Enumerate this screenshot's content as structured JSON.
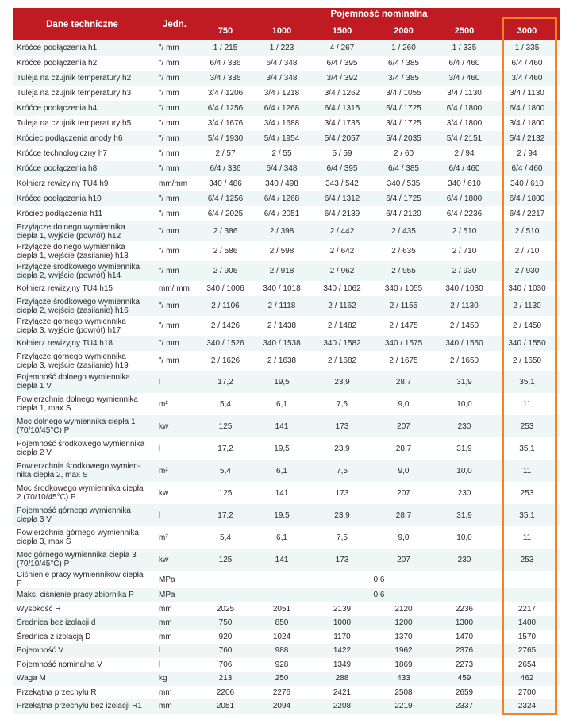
{
  "header": {
    "col_label": "Dane techniczne",
    "col_unit": "Jedn.",
    "group": "Pojemność nominalna",
    "capacities": [
      "750",
      "1000",
      "1500",
      "2000",
      "2500",
      "3000"
    ]
  },
  "highlight_color": "#f58220",
  "header_color": "#c01a22",
  "highlighted_column": "3000",
  "rows": [
    {
      "label": "Króćce podłączenia h1",
      "unit": "\"/ mm",
      "values": [
        "1 / 215",
        "1 / 223",
        "4 / 267",
        "1 / 260",
        "1 / 335",
        "1 / 335"
      ],
      "size": "s1"
    },
    {
      "label": "Króćce podłączenia h2",
      "unit": "\"/ mm",
      "values": [
        "6/4 / 336",
        "6/4 / 348",
        "6/4 / 395",
        "6/4 / 385",
        "6/4 / 460",
        "6/4 / 460"
      ],
      "size": "s1"
    },
    {
      "label": "Tuleja na czujnik temperatury h2",
      "unit": "\"/ mm",
      "values": [
        "3/4 / 336",
        "3/4 / 348",
        "3/4 / 392",
        "3/4 / 385",
        "3/4 / 460",
        "3/4 / 460"
      ],
      "size": "s1"
    },
    {
      "label": "Tuleja na czujnik temperatury h3",
      "unit": "\"/ mm",
      "values": [
        "3/4 / 1206",
        "3/4 / 1218",
        "3/4 / 1262",
        "3/4 / 1055",
        "3/4 / 1130",
        "3/4 / 1130"
      ],
      "size": "s1"
    },
    {
      "label": "Króćce podłączenia h4",
      "unit": "\"/ mm",
      "values": [
        "6/4 / 1256",
        "6/4 / 1268",
        "6/4 / 1315",
        "6/4 / 1725",
        "6/4 / 1800",
        "6/4 / 1800"
      ],
      "size": "s1"
    },
    {
      "label": "Tuleja na czujnik temperatury h5",
      "unit": "\"/ mm",
      "values": [
        "3/4 / 1676",
        "3/4 / 1688",
        "3/4 / 1735",
        "3/4 / 1725",
        "3/4 / 1800",
        "3/4 / 1800"
      ],
      "size": "s1"
    },
    {
      "label": "Króciec podłączenia anody h6",
      "unit": "\"/ mm",
      "values": [
        "5/4 / 1930",
        "5/4 / 1954",
        "5/4 / 2057",
        "5/4 / 2035",
        "5/4 / 2151",
        "5/4 / 2132"
      ],
      "size": "s1"
    },
    {
      "label": "Króćce technologiczny h7",
      "unit": "\"/ mm",
      "values": [
        "2 / 57",
        "2 / 55",
        "5 / 59",
        "2 / 60",
        "2 / 94",
        "2 / 94"
      ],
      "size": "s1"
    },
    {
      "label": "Króćce podłączenia h8",
      "unit": "\"/ mm",
      "values": [
        "6/4 / 336",
        "6/4 / 348",
        "6/4 / 395",
        "6/4 / 385",
        "6/4 / 460",
        "6/4 / 460"
      ],
      "size": "s1"
    },
    {
      "label": "Kołnierz rewizyjny TU4 h9",
      "unit": "mm/mm",
      "values": [
        "340 / 486",
        "340 / 498",
        "343 / 542",
        "340 / 535",
        "340 / 610",
        "340 / 610"
      ],
      "size": "s1"
    },
    {
      "label": "Króćce podłączenia h10",
      "unit": "\"/ mm",
      "values": [
        "6/4 / 1256",
        "6/4 / 1268",
        "6/4 / 1312",
        "6/4 / 1725",
        "6/4 / 1800",
        "6/4 / 1800"
      ],
      "size": "s1"
    },
    {
      "label": "Króciec podłączenia h11",
      "unit": "\"/ mm",
      "values": [
        "6/4 / 2025",
        "6/4 / 2051",
        "6/4 / 2139",
        "6/4 / 2120",
        "6/4 / 2236",
        "6/4 / 2217"
      ],
      "size": "s1"
    },
    {
      "label": "Przyłącze dolnego wymiennika ciepła 1, wyjście (powrót) h12",
      "unit": "\"/ mm",
      "values": [
        "2 / 386",
        "2 / 398",
        "2 / 442",
        "2 / 435",
        "2 / 510",
        "2 / 510"
      ],
      "size": "s2"
    },
    {
      "label": "Przyłącze dolnego wymiennika ciepła 1, wejście (zasilanie) h13",
      "unit": "\"/ mm",
      "values": [
        "2 / 586",
        "2 / 598",
        "2 / 642",
        "2 / 635",
        "2 / 710",
        "2 / 710"
      ],
      "size": "s2"
    },
    {
      "label": "Przyłącze środkowego wymiennika ciepła 2, wyjście (powrót) h14",
      "unit": "\"/ mm",
      "values": [
        "2 / 906",
        "2 / 918",
        "2 / 962",
        "2 / 955",
        "2 / 930",
        "2 / 930"
      ],
      "size": "s2"
    },
    {
      "label": "Kołnierz rewizyjny TU4 h15",
      "unit": "mm/ mm",
      "values": [
        "340 / 1006",
        "340 / 1018",
        "340 / 1062",
        "340 / 1055",
        "340 / 1030",
        "340 / 1030"
      ],
      "size": "s1"
    },
    {
      "label": "Przyłącze środkowego wymiennika ciepła 2, wejście (zasilanie) h16",
      "unit": "\"/ mm",
      "values": [
        "2 / 1106",
        "2 / 1118",
        "2 / 1162",
        "2 / 1155",
        "2 / 1130",
        "2 / 1130"
      ],
      "size": "s2"
    },
    {
      "label": "Przyłącze górnego wymiennika ciepła 3, wyjście (powrót) h17",
      "unit": "\"/ mm",
      "values": [
        "2 / 1426",
        "2 / 1438",
        "2 / 1482",
        "2 / 1475",
        "2 / 1450",
        "2 / 1450"
      ],
      "size": "s2"
    },
    {
      "label": "Kołnierz rewizyjny TU4 h18",
      "unit": "\"/ mm",
      "values": [
        "340 / 1526",
        "340 / 1538",
        "340 / 1582",
        "340 / 1575",
        "340 / 1550",
        "340 / 1550"
      ],
      "size": "s1"
    },
    {
      "label": "Przyłącze górnego wymiennika ciepła 3, wejście (zasilanie) h19",
      "unit": "\"/ mm",
      "values": [
        "2 / 1626",
        "2 / 1638",
        "2 / 1682",
        "2 / 1675",
        "2 / 1650",
        "2 / 1650"
      ],
      "size": "s2"
    },
    {
      "label": "Pojemność dolnego wymiennika ciepła 1 V",
      "unit": "l",
      "values": [
        "17,2",
        "19,5",
        "23,9",
        "28,7",
        "31,9",
        "35,1"
      ],
      "size": "s3"
    },
    {
      "label": "Powierzchnia dolnego wymiennika ciepła 1, max S",
      "unit": "m²",
      "values": [
        "5,4",
        "6,1",
        "7,5",
        "9,0",
        "10,0",
        "11"
      ],
      "size": "s3"
    },
    {
      "label": "Moc dolnego wymiennika ciepła 1 (70/10/45°C) P",
      "unit": "kw",
      "values": [
        "125",
        "141",
        "173",
        "207",
        "230",
        "253"
      ],
      "size": "s3"
    },
    {
      "label": "Pojemność środkowego wymiennika ciepła 2 V",
      "unit": "l",
      "values": [
        "17,2",
        "19,5",
        "23,9",
        "28,7",
        "31,9",
        "35,1"
      ],
      "size": "s3"
    },
    {
      "label": "Powierzchnia środkowego wymien-nika ciepła 2, max S",
      "unit": "m²",
      "values": [
        "5,4",
        "6,1",
        "7,5",
        "9,0",
        "10,0",
        "11"
      ],
      "size": "s3"
    },
    {
      "label": "Moc środkowego wymiennika ciepła 2 (70/10/45°C) P",
      "unit": "kw",
      "values": [
        "125",
        "141",
        "173",
        "207",
        "230",
        "253"
      ],
      "size": "s3"
    },
    {
      "label": "Pojemność górnego wymiennika ciepła 3 V",
      "unit": "l",
      "values": [
        "17,2",
        "19,5",
        "23,9",
        "28,7",
        "31,9",
        "35,1"
      ],
      "size": "s3"
    },
    {
      "label": "Powierzchnia górnego wymiennika ciepła 3, max S",
      "unit": "m²",
      "values": [
        "5,4",
        "6,1",
        "7,5",
        "9,0",
        "10,0",
        "11"
      ],
      "size": "s3"
    },
    {
      "label": "Moc górnego wymiennika ciepła 3 (70/10/45°C) P",
      "unit": "kw",
      "values": [
        "125",
        "141",
        "173",
        "207",
        "230",
        "253"
      ],
      "size": "s3"
    },
    {
      "label": "Ciśnienie pracy wymiennikow ciepła P",
      "unit": "MPa",
      "span": "0.6",
      "size": "s4"
    },
    {
      "label": "Maks. ciśnienie pracy zbiornika P",
      "unit": "MPa",
      "span": "0.6",
      "size": "s4"
    },
    {
      "label": "Wysokość H",
      "unit": "mm",
      "values": [
        "2025",
        "2051",
        "2139",
        "2120",
        "2236",
        "2217"
      ],
      "size": "s4"
    },
    {
      "label": "Średnica bez izolacji d",
      "unit": "mm",
      "values": [
        "750",
        "850",
        "1000",
        "1200",
        "1300",
        "1400"
      ],
      "size": "s4"
    },
    {
      "label": "Średnica z izolacją D",
      "unit": "mm",
      "values": [
        "920",
        "1024",
        "1170",
        "1370",
        "1470",
        "1570"
      ],
      "size": "s4"
    },
    {
      "label": "Pojemność V",
      "unit": "l",
      "values": [
        "760",
        "988",
        "1422",
        "1962",
        "2376",
        "2765"
      ],
      "size": "s4"
    },
    {
      "label": "Pojemność nominalna V",
      "unit": "l",
      "values": [
        "706",
        "928",
        "1349",
        "1869",
        "2273",
        "2654"
      ],
      "size": "s4"
    },
    {
      "label": "Waga M",
      "unit": "kg",
      "values": [
        "213",
        "250",
        "288",
        "433",
        "459",
        "462"
      ],
      "size": "s4"
    },
    {
      "label": "Przekątna przechyłu R",
      "unit": "mm",
      "values": [
        "2206",
        "2276",
        "2421",
        "2508",
        "2659",
        "2700"
      ],
      "size": "s4"
    },
    {
      "label": "Przekątna przechyłu bez izolacji R1",
      "unit": "mm",
      "values": [
        "2051",
        "2094",
        "2208",
        "2219",
        "2337",
        "2324"
      ],
      "size": "s4"
    }
  ]
}
